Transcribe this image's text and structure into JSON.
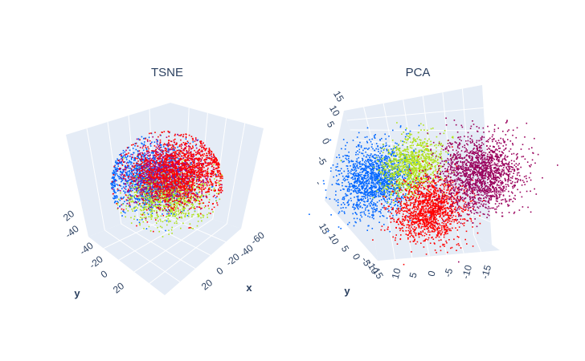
{
  "chart_data": [
    {
      "type": "scatter",
      "title": "TSNE",
      "axes": {
        "x_label": "x",
        "y_label": "y",
        "z_label": ""
      },
      "x_ticks": [
        "-60",
        "-40",
        "-20",
        "0",
        "20"
      ],
      "y_ticks": [
        "-40",
        "-20",
        "0",
        "20"
      ],
      "z_ticks": [
        "20",
        "-40"
      ],
      "series": [
        {
          "color": "#0066ff",
          "center": [
            -20,
            -15,
            -5
          ],
          "spread": 18,
          "count": 1400
        },
        {
          "color": "#b0e21a",
          "center": [
            5,
            10,
            -10
          ],
          "spread": 16,
          "count": 900
        },
        {
          "color": "#b0007a",
          "center": [
            0,
            0,
            12
          ],
          "spread": 17,
          "count": 900
        },
        {
          "color": "#ff0000",
          "center": [
            10,
            -5,
            15
          ],
          "spread": 19,
          "count": 1500
        }
      ],
      "grid": true
    },
    {
      "type": "scatter",
      "title": "PCA",
      "axes": {
        "x_label": "",
        "y_label": "y",
        "z_label": ""
      },
      "x_ticks": [
        "10",
        "5",
        "0",
        "-5",
        "-10",
        "-15"
      ],
      "y_ticks": [
        "15",
        "10",
        "5",
        "0",
        "-5",
        "-10",
        "-15"
      ],
      "z_ticks": [
        "15",
        "10",
        "5",
        "0",
        "-5",
        "-"
      ],
      "series": [
        {
          "color": "#0066ff",
          "center": [
            -9,
            2,
            0
          ],
          "spread": 3.2,
          "count": 1500
        },
        {
          "color": "#b0e21a",
          "center": [
            -3,
            4,
            0
          ],
          "spread": 2.6,
          "count": 1000
        },
        {
          "color": "#ff0000",
          "center": [
            1,
            -4,
            0
          ],
          "spread": 3.0,
          "count": 1400
        },
        {
          "color": "#99005c",
          "center": [
            9,
            3,
            0
          ],
          "spread": 3.4,
          "count": 1700
        }
      ],
      "grid": true
    }
  ]
}
